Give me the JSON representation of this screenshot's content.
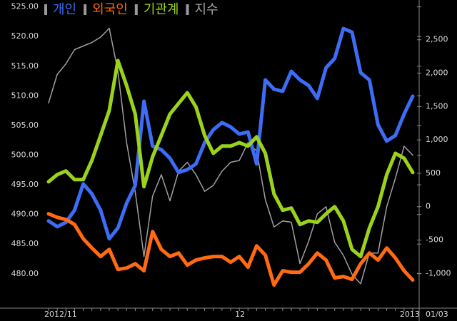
{
  "chart_data": {
    "type": "line",
    "categories": [
      "2012/11",
      null,
      null,
      null,
      null,
      null,
      null,
      null,
      null,
      null,
      null,
      null,
      null,
      null,
      null,
      null,
      null,
      null,
      null,
      null,
      null,
      null,
      "12",
      null,
      null,
      null,
      null,
      null,
      null,
      null,
      null,
      null,
      null,
      null,
      null,
      null,
      null,
      null,
      null,
      null,
      null,
      "2013",
      null
    ],
    "current_date": "01/03",
    "series": [
      {
        "name": "개인",
        "color": "#3d6cf5",
        "axis": "y2",
        "values": [
          -213,
          -299,
          -235,
          -53,
          341,
          192,
          -53,
          -480,
          -320,
          53,
          320,
          1579,
          907,
          854,
          726,
          512,
          555,
          640,
          960,
          1152,
          1259,
          1195,
          1088,
          1120,
          640,
          1899,
          1760,
          1728,
          2027,
          1899,
          1814,
          1622,
          2080,
          2219,
          2667,
          2614,
          2006,
          1899,
          1227,
          982,
          1067,
          1387,
          1654
        ]
      },
      {
        "name": "외국인",
        "color": "#ff6a13",
        "axis": "y2",
        "values": [
          -107,
          -160,
          -192,
          -267,
          -480,
          -619,
          -747,
          -640,
          -939,
          -918,
          -854,
          -960,
          -373,
          -640,
          -747,
          -694,
          -875,
          -800,
          -768,
          -747,
          -747,
          -832,
          -747,
          -907,
          -587,
          -726,
          -1174,
          -960,
          -982,
          -982,
          -854,
          -694,
          -800,
          -1067,
          -1046,
          -1088,
          -854,
          -694,
          -800,
          -619,
          -768,
          -960,
          -1099
        ]
      },
      {
        "name": "기관계",
        "color": "#9bd31b",
        "axis": "y2",
        "values": [
          373,
          480,
          534,
          405,
          405,
          694,
          1067,
          1441,
          2187,
          1814,
          1387,
          299,
          747,
          1067,
          1387,
          1547,
          1707,
          1494,
          1067,
          800,
          907,
          907,
          960,
          907,
          1046,
          800,
          192,
          -53,
          -21,
          -267,
          -213,
          -235,
          -107,
          0,
          -213,
          -640,
          -747,
          -320,
          0,
          480,
          800,
          726,
          512
        ]
      },
      {
        "name": "지수",
        "color": "#a0a0a0",
        "values": [
          508.8,
          513.6,
          515.4,
          517.8,
          518.4,
          519.0,
          519.9,
          521.4,
          514.2,
          502.1,
          493.8,
          482.9,
          493.1,
          496.7,
          492.3,
          497.3,
          498.8,
          496.7,
          493.9,
          494.9,
          497.3,
          498.8,
          499.1,
          502.1,
          500.7,
          492.5,
          487.9,
          488.9,
          488.7,
          481.7,
          485.5,
          490.1,
          491.3,
          485.3,
          483.1,
          479.9,
          478.3,
          483.5,
          483.5,
          491.3,
          496.1,
          501.5,
          500.0
        ]
      }
    ],
    "ylim": [
      474.2,
      525.2
    ],
    "yticks": [
      {
        "value": 480,
        "label": "480.00"
      },
      {
        "value": 485,
        "label": "485.00"
      },
      {
        "value": 490,
        "label": "490.00"
      },
      {
        "value": 495,
        "label": "495.00"
      },
      {
        "value": 500,
        "label": "500.00"
      },
      {
        "value": 505,
        "label": "505.00"
      },
      {
        "value": 510,
        "label": "510.00"
      },
      {
        "value": 515,
        "label": "515.00"
      },
      {
        "value": 520,
        "label": "520.00"
      },
      {
        "value": 525,
        "label": "525.00"
      }
    ],
    "y2lim": [
      -1520,
      3010
    ],
    "y2ticks": [
      {
        "value": -1000,
        "label": "-1,000"
      },
      -500,
      0,
      500,
      {
        "value": 1000,
        "label": "1,000"
      },
      {
        "value": 1500,
        "label": "1,500"
      },
      {
        "value": 2000,
        "label": "2,000"
      },
      {
        "value": 2500,
        "label": "2,500"
      }
    ]
  }
}
